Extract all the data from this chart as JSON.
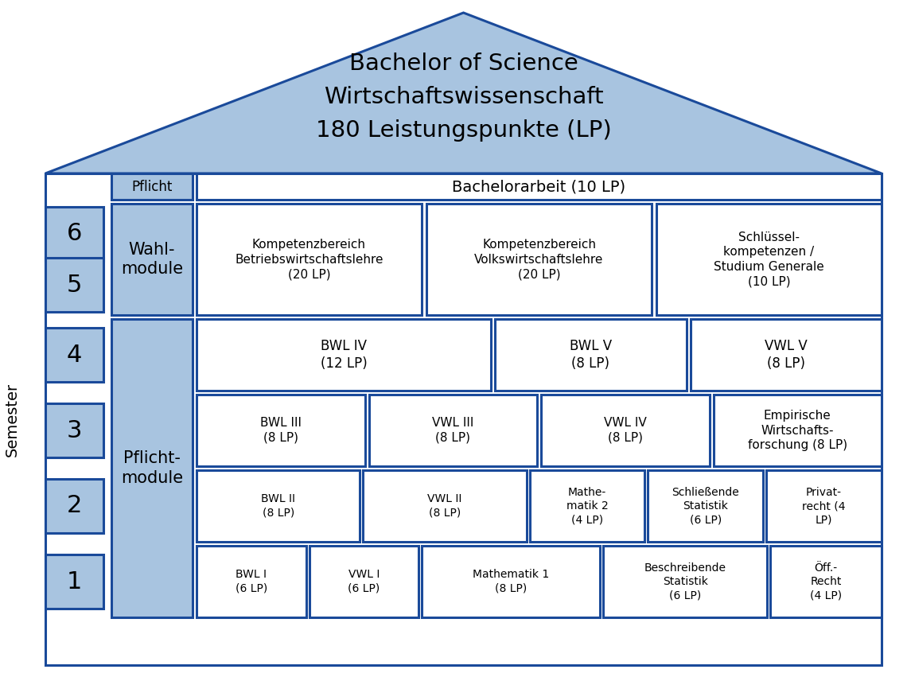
{
  "title_lines": [
    "Bachelor of Science",
    "Wirtschaftswissenschaft",
    "180 Leistungspunkte (LP)"
  ],
  "bg_color": "#ffffff",
  "blue_fill": "#a8c4e0",
  "box_edge": "#1a4a9a",
  "white_fill": "#ffffff",
  "semester_label": "Semester",
  "row_labels": {
    "wahl": [
      "Kompetenzbereich\nBetriebswirtschaftslehre\n(20 LP)",
      "Kompetenzbereich\nVolkswirtschaftslehre\n(20 LP)",
      "Schlüssel-\nkompetenzen /\nStudium Generale\n(10 LP)"
    ],
    "sem4": [
      "BWL IV\n(12 LP)",
      "BWL V\n(8 LP)",
      "VWL V\n(8 LP)"
    ],
    "sem3": [
      "BWL III\n(8 LP)",
      "VWL III\n(8 LP)",
      "VWL IV\n(8 LP)",
      "Empirische\nWirtschafts-\nforschung (8 LP)"
    ],
    "sem2": [
      "BWL II\n(8 LP)",
      "VWL II\n(8 LP)",
      "Mathe-\nmatik 2\n(4 LP)",
      "Schließende\nStatistik\n(6 LP)",
      "Privat-\nrecht (4\nLP)"
    ],
    "sem1": [
      "BWL I\n(6 LP)",
      "VWL I\n(6 LP)",
      "Mathematik 1\n(8 LP)",
      "Beschreibende\nStatistik\n(6 LP)",
      "Öff.-\nRecht\n(4 LP)"
    ]
  }
}
